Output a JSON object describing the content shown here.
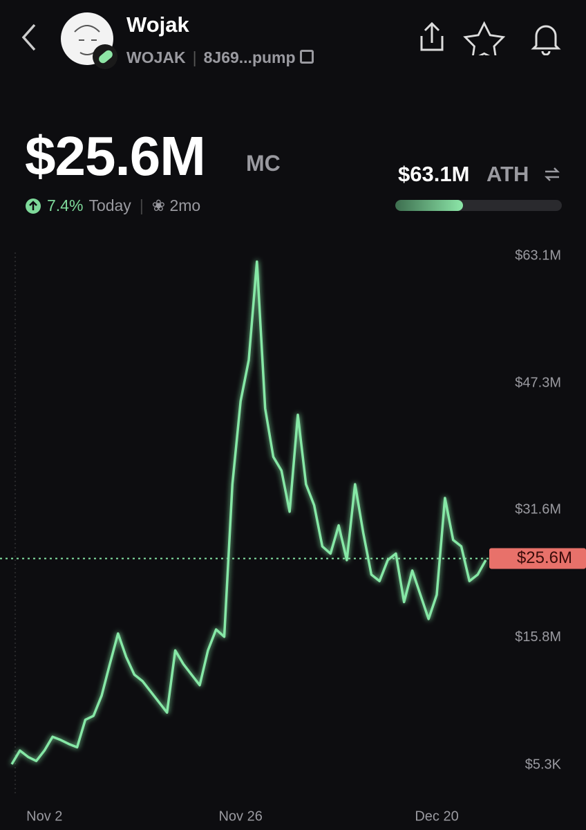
{
  "header": {
    "name": "Wojak",
    "ticker": "WOJAK",
    "address": "8J69...pump",
    "market_cap": "$25.6M",
    "market_cap_label": "MC",
    "ath": "$63.1M",
    "ath_label": "ATH",
    "change": "7.4%",
    "change_period": "Today",
    "age": "2mo"
  },
  "chart_data": {
    "type": "line",
    "categories": [
      null,
      null,
      null,
      null,
      "Nov 2",
      null,
      null,
      null,
      null,
      null,
      null,
      null,
      null,
      null,
      null,
      null,
      null,
      null,
      null,
      null,
      null,
      null,
      null,
      null,
      null,
      null,
      null,
      null,
      "Nov 26",
      null,
      null,
      null,
      null,
      null,
      null,
      null,
      null,
      null,
      null,
      null,
      null,
      null,
      null,
      null,
      null,
      null,
      null,
      null,
      null,
      null,
      null,
      null,
      "Dec 20",
      null,
      null,
      null,
      null,
      null,
      null
    ],
    "series": [
      {
        "name": "WOJAK",
        "color": "#86e8a6",
        "values": [
          100000,
          1800000,
          1000000,
          500000,
          1800000,
          3500000,
          3100000,
          2600000,
          2200000,
          5600000,
          6100000,
          8600000,
          12500000,
          16300000,
          13400000,
          11200000,
          10400000,
          9100000,
          7800000,
          6500000,
          14200000,
          12500000,
          11200000,
          9900000,
          14200000,
          16800000,
          15900000,
          34800000,
          45100000,
          50200000,
          62400000,
          44200000,
          38200000,
          36500000,
          31400000,
          43400000,
          34800000,
          32200000,
          27100000,
          26200000,
          29700000,
          25400000,
          34800000,
          28800000,
          23600000,
          22800000,
          25400000,
          26200000,
          20200000,
          24100000,
          21100000,
          18100000,
          21100000,
          33100000,
          27900000,
          27100000,
          22800000,
          23600000,
          25400000
        ]
      }
    ],
    "ylim": [
      5300,
      63100000
    ],
    "yticks": [
      {
        "value": 5300,
        "label": "$5.3K"
      },
      {
        "value": 15800000,
        "label": "$15.8M"
      },
      {
        "value": 31600000,
        "label": "$31.6M"
      },
      {
        "value": 47300000,
        "label": "$47.3M"
      },
      {
        "value": 63100000,
        "label": "$63.1M"
      }
    ],
    "current": {
      "value": 25600000,
      "label": "$25.6M"
    }
  }
}
